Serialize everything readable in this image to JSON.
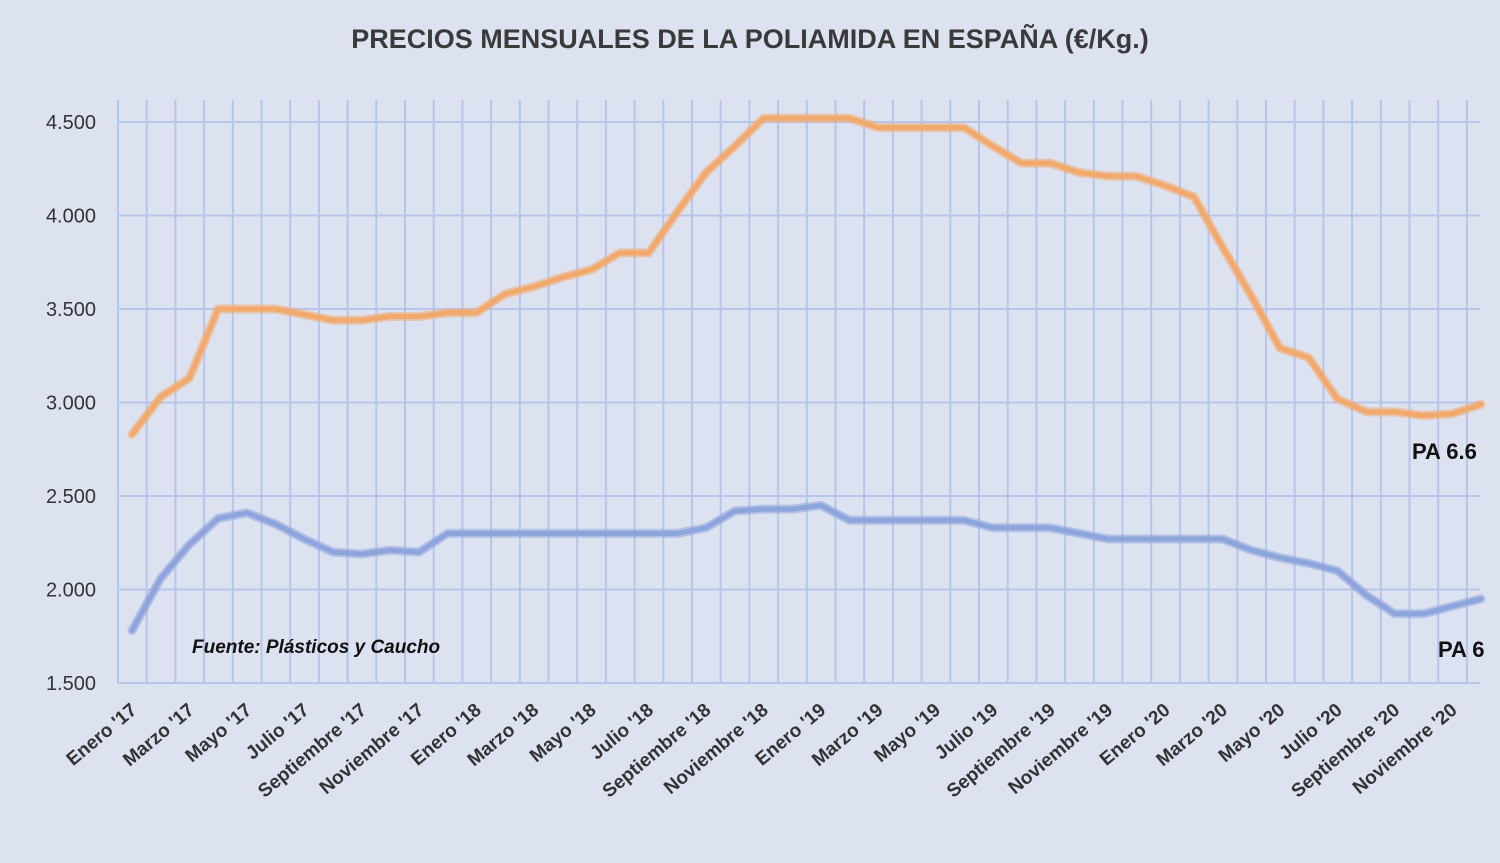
{
  "chart_data": {
    "type": "line",
    "title": "PRECIOS MENSUALES DE LA POLIAMIDA EN ESPAÑA (€/Kg.)",
    "source": "Fuente: Plásticos  y Caucho",
    "xlabel": "",
    "ylabel": "",
    "ylim": [
      1500,
      4600
    ],
    "yticks": [
      1500,
      2000,
      2500,
      3000,
      3500,
      4000,
      4500
    ],
    "ytick_labels": [
      "1.500",
      "2.000",
      "2.500",
      "3.000",
      "3.500",
      "4.000",
      "4.500"
    ],
    "grid": "vertical and horizontal",
    "x": [
      "Enero '17",
      "Febrero '17",
      "Marzo '17",
      "Abril '17",
      "Mayo '17",
      "Junio '17",
      "Julio '17",
      "Agosto '17",
      "Septiembre '17",
      "Octubre '17",
      "Noviembre '17",
      "Diciembre '17",
      "Enero '18",
      "Febrero '18",
      "Marzo '18",
      "Abril '18",
      "Mayo '18",
      "Junio '18",
      "Julio '18",
      "Agosto '18",
      "Septiembre '18",
      "Octubre '18",
      "Noviembre '18",
      "Diciembre '18",
      "Enero '19",
      "Febrero '19",
      "Marzo '19",
      "Abril '19",
      "Mayo '19",
      "Junio '19",
      "Julio '19",
      "Agosto '19",
      "Septiembre '19",
      "Octubre '19",
      "Noviembre '19",
      "Diciembre '19",
      "Enero '20",
      "Febrero '20",
      "Marzo '20",
      "Abril '20",
      "Mayo '20",
      "Junio '20",
      "Julio '20",
      "Agosto '20",
      "Septiembre '20",
      "Octubre '20",
      "Noviembre '20",
      "Diciembre '20"
    ],
    "xtick_labels": [
      "Enero '17",
      "Marzo '17",
      "Mayo '17",
      "Julio '17",
      "Septiembre '17",
      "Noviembre '17",
      "Enero '18",
      "Marzo '18",
      "Mayo '18",
      "Julio '18",
      "Septiembre '18",
      "Noviembre '18",
      "Enero '19",
      "Marzo '19",
      "Mayo '19",
      "Julio '19",
      "Septiembre '19",
      "Noviembre '19",
      "Enero '20",
      "Marzo '20",
      "Mayo '20",
      "Julio '20",
      "Septiembre '20",
      "Noviembre '20"
    ],
    "series": [
      {
        "name": "PA 6.6",
        "color": "#f2a96e",
        "values": [
          2830,
          3030,
          3130,
          3500,
          3500,
          3500,
          3470,
          3440,
          3440,
          3460,
          3460,
          3480,
          3480,
          3580,
          3620,
          3670,
          3710,
          3800,
          3800,
          4020,
          4230,
          4370,
          4520,
          4520,
          4520,
          4520,
          4470,
          4470,
          4470,
          4470,
          4370,
          4280,
          4280,
          4230,
          4210,
          4210,
          4160,
          4100,
          3830,
          3570,
          3290,
          3240,
          3020,
          2950,
          2950,
          2930,
          2940,
          2990
        ]
      },
      {
        "name": "PA 6",
        "color": "#8ea4dc",
        "values": [
          1780,
          2060,
          2240,
          2380,
          2410,
          2350,
          2270,
          2200,
          2190,
          2210,
          2200,
          2300,
          2300,
          2300,
          2300,
          2300,
          2300,
          2300,
          2300,
          2300,
          2330,
          2420,
          2430,
          2430,
          2450,
          2370,
          2370,
          2370,
          2370,
          2370,
          2330,
          2330,
          2330,
          2300,
          2270,
          2270,
          2270,
          2270,
          2270,
          2210,
          2170,
          2140,
          2100,
          1970,
          1870,
          1870,
          1910,
          1950
        ]
      }
    ]
  }
}
